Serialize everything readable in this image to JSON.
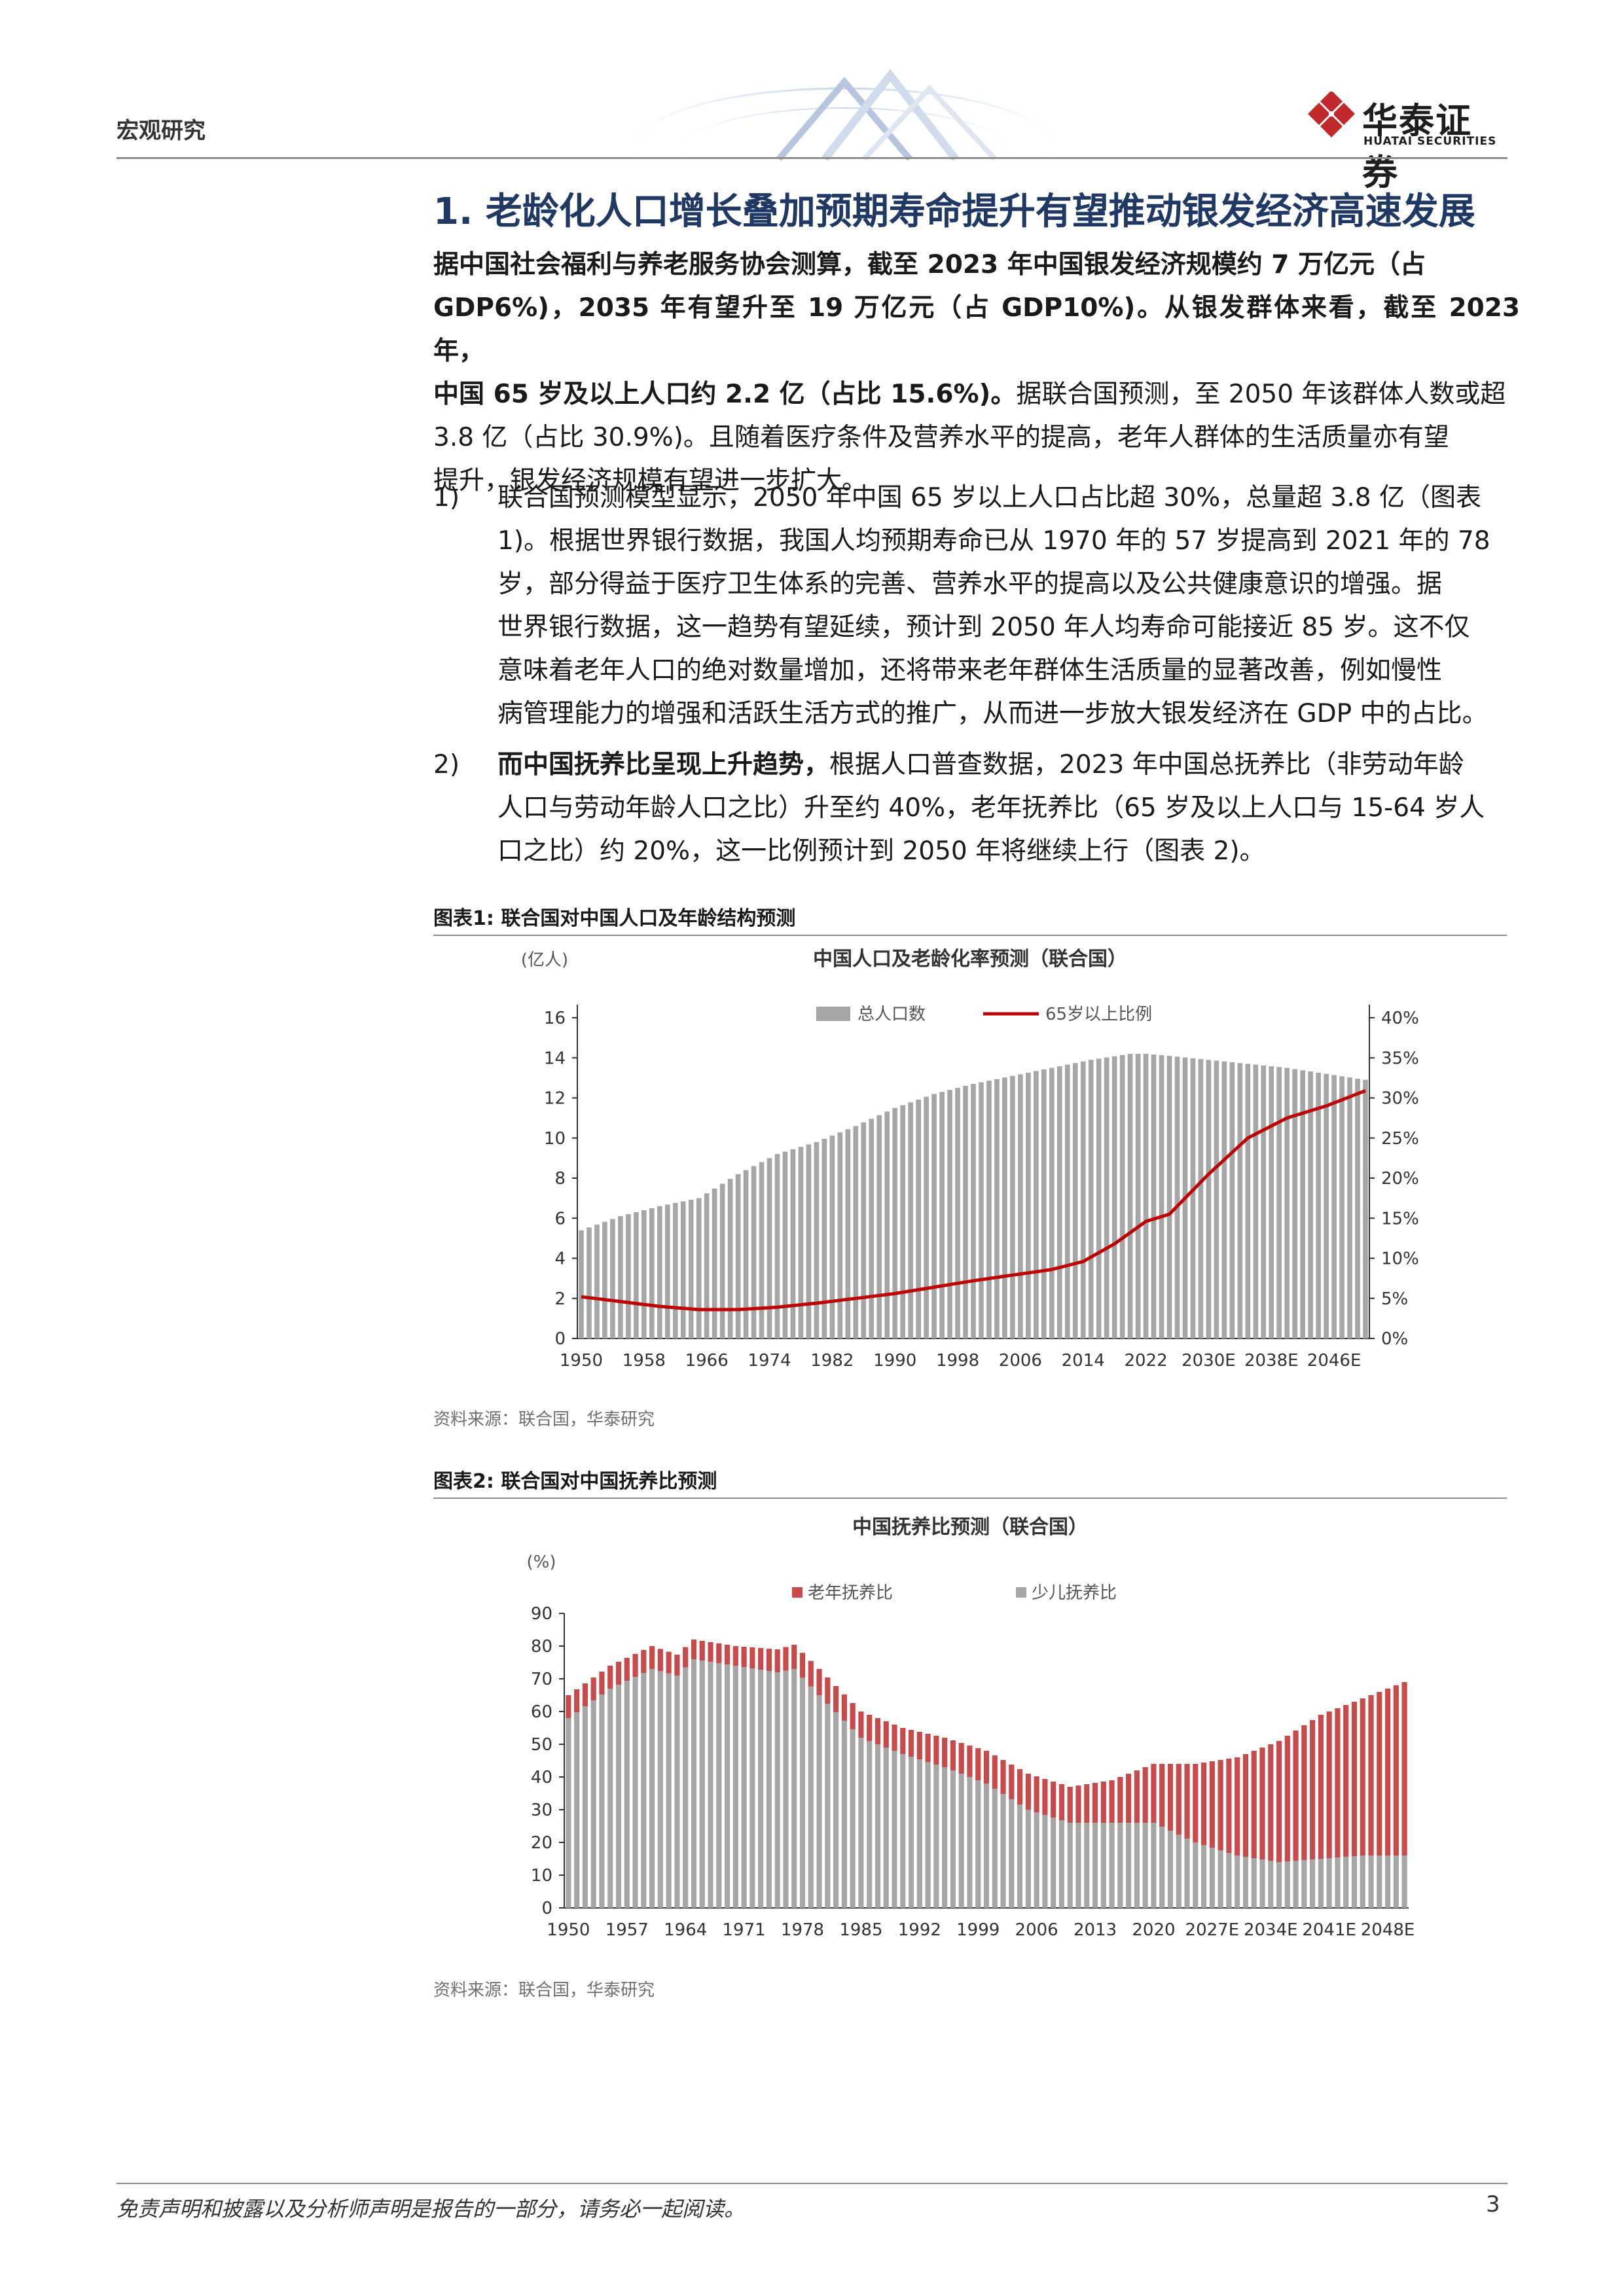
{
  "header": {
    "section": "宏观研究",
    "logo_cn": "华泰证券",
    "logo_en": "HUATAI SECURITIES",
    "accent": "#c0282c"
  },
  "heading": "1. 老龄化人口增长叠加预期寿命提升有望推动银发经济高速发展",
  "intro": {
    "lines": [
      [
        {
          "t": "据中国社会福利与养老服务协会测算，截至 2023 年中国银发经济规模约 7 万亿元（占",
          "b": true
        }
      ],
      [
        {
          "t": "GDP6%)，2035 年有望升至 19 万亿元（占 GDP10%)。从银发群体来看，截至 2023 年，",
          "b": true
        }
      ],
      [
        {
          "t": "中国 65 岁及以上人口约 2.2 亿（占比 15.6%)。",
          "b": true
        },
        {
          "t": "据联合国预测，至 2050 年该群体人数或超",
          "b": false
        }
      ],
      [
        {
          "t": "3.8 亿（占比 30.9%)。且随着医疗条件及营养水平的提高，老年人群体的生活质量亦有望",
          "b": false
        }
      ],
      [
        {
          "t": "提升，银发经济规模有望进一步扩大。",
          "b": false
        }
      ]
    ]
  },
  "items": [
    {
      "label": "1)",
      "lines": [
        [
          {
            "t": "联合国预测模型显示，2050 年中国 65 岁以上人口占比超 30%，总量超 3.8 亿（图表",
            "b": false
          }
        ],
        [
          {
            "t": "1)。根据世界银行数据，我国人均预期寿命已从 1970 年的 57 岁提高到 2021 年的 78",
            "b": false
          }
        ],
        [
          {
            "t": "岁，部分得益于医疗卫生体系的完善、营养水平的提高以及公共健康意识的增强。据",
            "b": false
          }
        ],
        [
          {
            "t": "世界银行数据，这一趋势有望延续，预计到 2050 年人均寿命可能接近 85 岁。这不仅",
            "b": false
          }
        ],
        [
          {
            "t": "意味着老年人口的绝对数量增加，还将带来老年群体生活质量的显著改善，例如慢性",
            "b": false
          }
        ],
        [
          {
            "t": "病管理能力的增强和活跃生活方式的推广，从而进一步放大银发经济在 GDP 中的占比。",
            "b": false
          }
        ]
      ]
    },
    {
      "label": "2)",
      "lines": [
        [
          {
            "t": "而中国抚养比呈现上升趋势，",
            "b": true
          },
          {
            "t": "根据人口普查数据，2023 年中国总抚养比（非劳动年龄",
            "b": false
          }
        ],
        [
          {
            "t": "人口与劳动年龄人口之比）升至约 40%，老年抚养比（65 岁及以上人口与 15-64 岁人",
            "b": false
          }
        ],
        [
          {
            "t": "口之比）约 20%，这一比例预计到 2050 年将继续上行（图表 2)。",
            "b": false
          }
        ]
      ]
    }
  ],
  "figure1": {
    "caption": "图表1:   联合国对中国人口及年龄结构预测",
    "source": "资料来源：联合国，华泰研究"
  },
  "figure2": {
    "caption": "图表2:   联合国对中国抚养比预测",
    "source": "资料来源：联合国，华泰研究"
  },
  "footer": {
    "disclaimer": "免责声明和披露以及分析师声明是报告的一部分，请务必一起阅读。",
    "page": "3"
  },
  "chart_data": [
    {
      "type": "bar+line",
      "title": "中国人口及老龄化率预测（联合国）",
      "ylabel": "(亿人)",
      "ylim": [
        0,
        16
      ],
      "yticks": [
        "0",
        "2",
        "4",
        "6",
        "8",
        "10",
        "12",
        "14",
        "16"
      ],
      "y2lim": [
        0,
        40
      ],
      "y2ticks": [
        "0%",
        "5%",
        "10%",
        "15%",
        "20%",
        "25%",
        "30%",
        "35%",
        "40%"
      ],
      "xticks": [
        "1950",
        "1958",
        "1966",
        "1974",
        "1982",
        "1990",
        "1998",
        "2006",
        "2014",
        "2022",
        "2030E",
        "2038E",
        "2046E"
      ],
      "x_start": 1950,
      "x_end": 2050,
      "legend": [
        "总人口数",
        "65岁以上比例"
      ],
      "colors": {
        "bar": "#a6a6a6",
        "line": "#c00000"
      },
      "population_knots": [
        [
          1950,
          5.4
        ],
        [
          1955,
          6.1
        ],
        [
          1960,
          6.6
        ],
        [
          1965,
          7.0
        ],
        [
          1970,
          8.2
        ],
        [
          1975,
          9.2
        ],
        [
          1980,
          9.8
        ],
        [
          1985,
          10.6
        ],
        [
          1990,
          11.5
        ],
        [
          1995,
          12.2
        ],
        [
          2000,
          12.7
        ],
        [
          2005,
          13.1
        ],
        [
          2010,
          13.5
        ],
        [
          2015,
          13.9
        ],
        [
          2020,
          14.2
        ],
        [
          2022,
          14.2
        ],
        [
          2025,
          14.1
        ],
        [
          2030,
          13.9
        ],
        [
          2035,
          13.7
        ],
        [
          2040,
          13.5
        ],
        [
          2045,
          13.2
        ],
        [
          2050,
          12.9
        ]
      ],
      "aged65_share_knots": [
        [
          1950,
          5.2
        ],
        [
          1955,
          4.6
        ],
        [
          1960,
          4.0
        ],
        [
          1965,
          3.6
        ],
        [
          1970,
          3.6
        ],
        [
          1975,
          3.9
        ],
        [
          1980,
          4.4
        ],
        [
          1985,
          5.0
        ],
        [
          1990,
          5.6
        ],
        [
          1995,
          6.4
        ],
        [
          2000,
          7.2
        ],
        [
          2005,
          7.9
        ],
        [
          2010,
          8.6
        ],
        [
          2014,
          9.6
        ],
        [
          2018,
          11.8
        ],
        [
          2022,
          14.6
        ],
        [
          2025,
          15.5
        ],
        [
          2030,
          20.5
        ],
        [
          2035,
          25.0
        ],
        [
          2040,
          27.5
        ],
        [
          2045,
          29.0
        ],
        [
          2050,
          30.9
        ]
      ]
    },
    {
      "type": "stacked-bar",
      "title": "中国抚养比预测（联合国）",
      "ylabel": "(%)",
      "ylim": [
        0,
        90
      ],
      "yticks": [
        "0",
        "10",
        "20",
        "30",
        "40",
        "50",
        "60",
        "70",
        "80",
        "90"
      ],
      "xticks": [
        "1950",
        "1957",
        "1964",
        "1971",
        "1978",
        "1985",
        "1992",
        "1999",
        "2006",
        "2013",
        "2020",
        "2027E",
        "2034E",
        "2041E",
        "2048E"
      ],
      "x_start": 1950,
      "x_end": 2050,
      "legend": [
        "老年抚养比",
        "少儿抚养比"
      ],
      "colors": {
        "old": "#c94a4a",
        "young": "#a6a6a6"
      },
      "young_knots": [
        [
          1950,
          58
        ],
        [
          1955,
          67
        ],
        [
          1960,
          73
        ],
        [
          1963,
          71
        ],
        [
          1965,
          76
        ],
        [
          1970,
          74
        ],
        [
          1975,
          72
        ],
        [
          1977,
          73
        ],
        [
          1980,
          65
        ],
        [
          1985,
          52
        ],
        [
          1990,
          47
        ],
        [
          1995,
          43
        ],
        [
          2000,
          38
        ],
        [
          2005,
          30
        ],
        [
          2010,
          26
        ],
        [
          2015,
          26
        ],
        [
          2020,
          26
        ],
        [
          2025,
          20
        ],
        [
          2030,
          16
        ],
        [
          2035,
          14
        ],
        [
          2040,
          15
        ],
        [
          2045,
          16
        ],
        [
          2050,
          16
        ]
      ],
      "old_knots": [
        [
          1950,
          7
        ],
        [
          1960,
          7
        ],
        [
          1965,
          6
        ],
        [
          1970,
          6
        ],
        [
          1975,
          7
        ],
        [
          1980,
          8
        ],
        [
          1985,
          8
        ],
        [
          1990,
          8
        ],
        [
          1995,
          9
        ],
        [
          2000,
          10
        ],
        [
          2005,
          11
        ],
        [
          2010,
          11
        ],
        [
          2015,
          13
        ],
        [
          2020,
          18
        ],
        [
          2025,
          24
        ],
        [
          2030,
          30
        ],
        [
          2035,
          37
        ],
        [
          2040,
          44
        ],
        [
          2045,
          48
        ],
        [
          2050,
          53
        ]
      ]
    }
  ]
}
